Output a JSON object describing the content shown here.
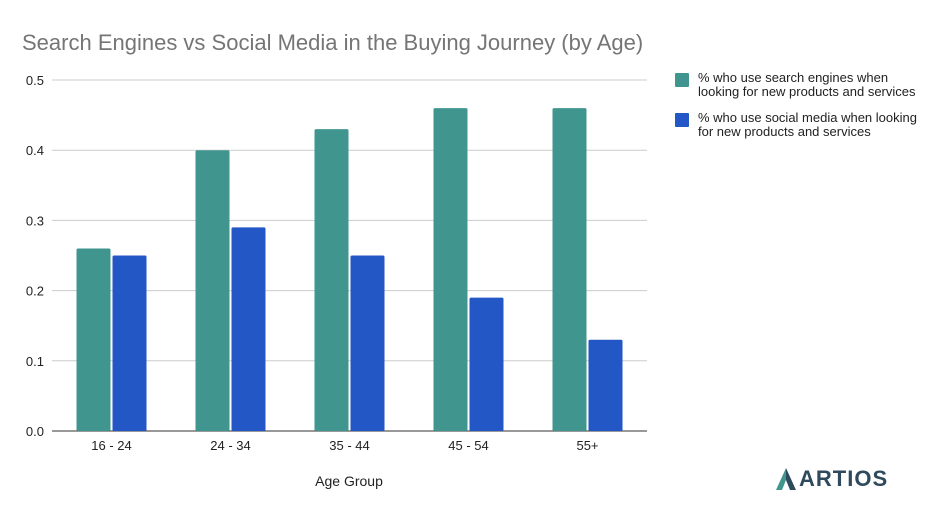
{
  "chart_data": {
    "type": "bar",
    "title": "Search Engines vs Social Media in the Buying Journey (by Age)",
    "xlabel": "Age Group",
    "ylabel": "",
    "categories": [
      "16 - 24",
      "24 - 34",
      "35 - 44",
      "45 - 54",
      "55+"
    ],
    "series": [
      {
        "name": "% who use search engines when looking for new products and services",
        "values": [
          0.26,
          0.4,
          0.43,
          0.46,
          0.46
        ],
        "color": "#40968f"
      },
      {
        "name": "% who use social media when looking for new products and services",
        "values": [
          0.25,
          0.29,
          0.25,
          0.19,
          0.13
        ],
        "color": "#2357c5"
      }
    ],
    "ylim": [
      0,
      0.5
    ],
    "yticks": [
      "0.0",
      "0.1",
      "0.2",
      "0.3",
      "0.4",
      "0.5"
    ],
    "grid": true,
    "legend_position": "right"
  },
  "logo": {
    "text": "ARTIOS",
    "color": "#2f4a5c",
    "accent": "#40968f"
  }
}
